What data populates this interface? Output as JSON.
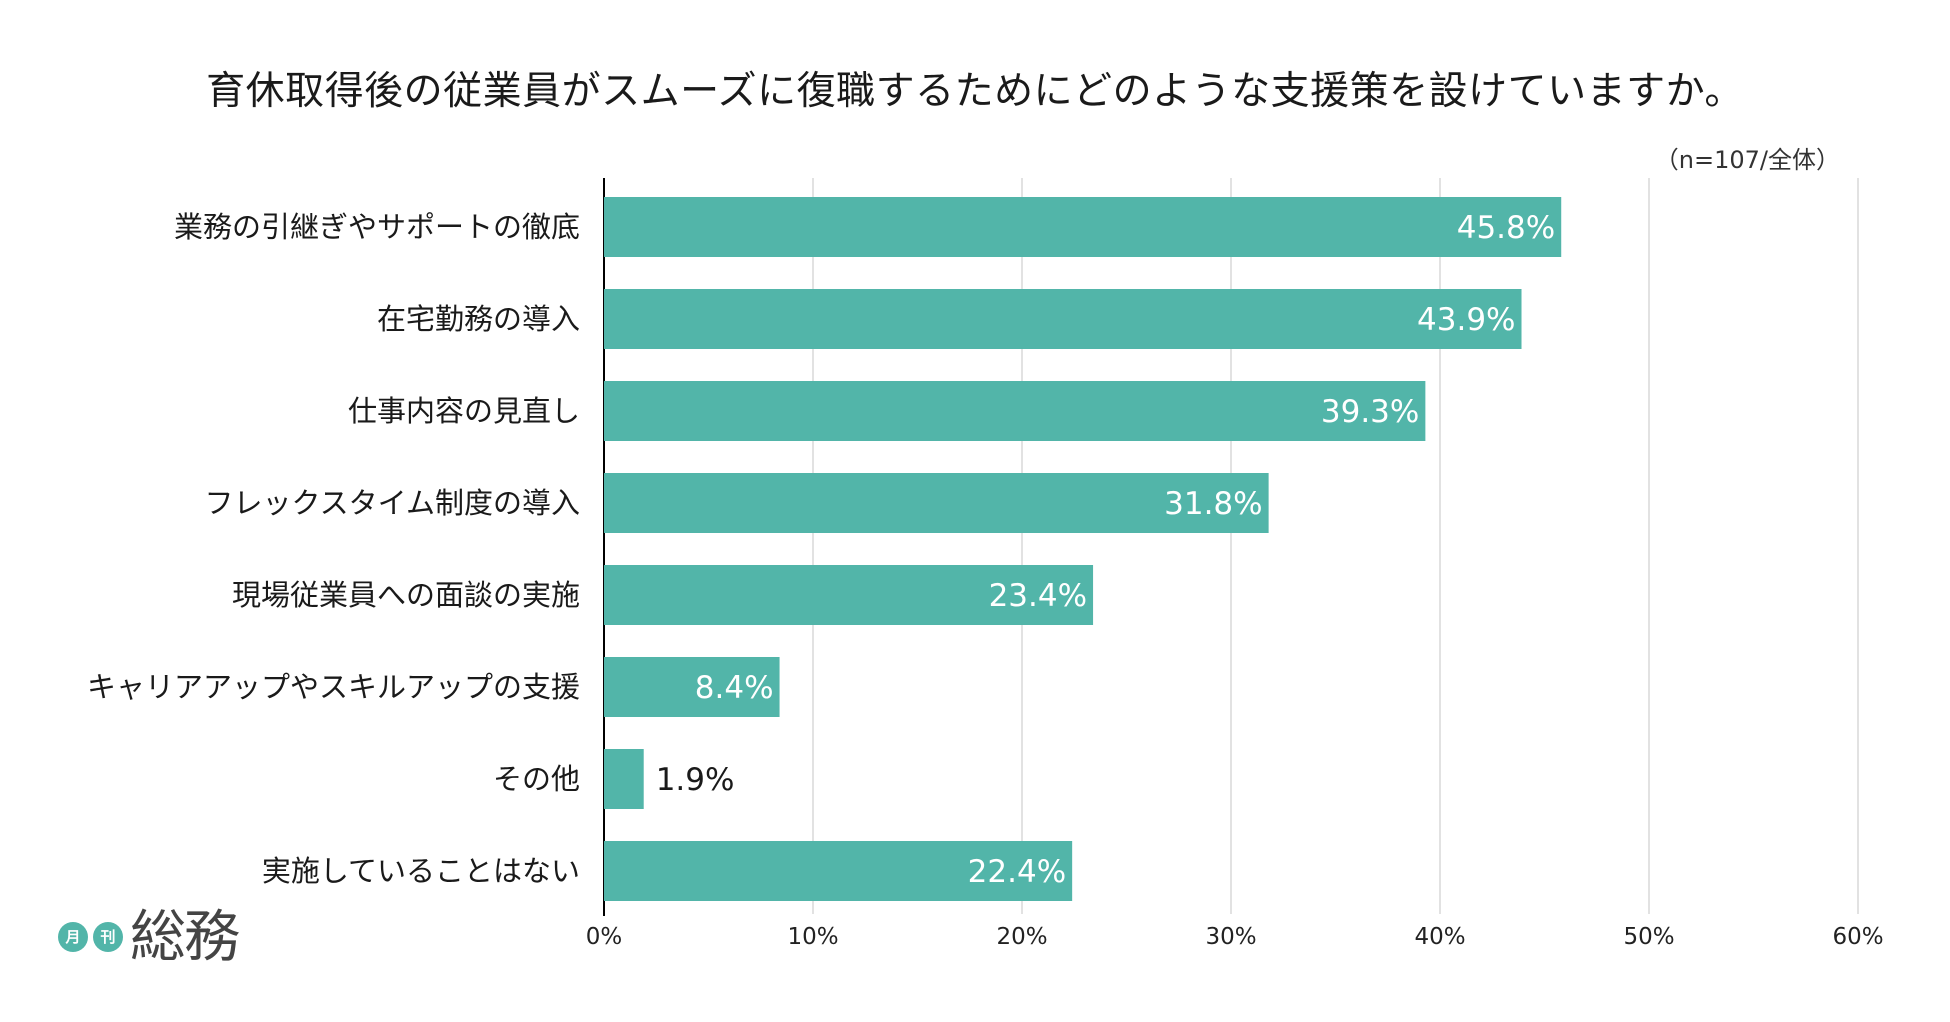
{
  "chart_data": {
    "type": "bar",
    "orientation": "horizontal",
    "title": "育休取得後の従業員がスムーズに復職するためにどのような支援策を設けていますか。",
    "note": "（n=107/全体）",
    "categories": [
      "業務の引継ぎやサポートの徹底",
      "在宅勤務の導入",
      "仕事内容の見直し",
      "フレックスタイム制度の導入",
      "現場従業員への面談の実施",
      "キャリアアップやスキルアップの支援",
      "その他",
      "実施していることはない"
    ],
    "values": [
      45.8,
      43.9,
      39.3,
      31.8,
      23.4,
      8.4,
      1.9,
      22.4
    ],
    "value_labels": [
      "45.8%",
      "43.9%",
      "39.3%",
      "31.8%",
      "23.4%",
      "8.4%",
      "1.9%",
      "22.4%"
    ],
    "xlim": [
      0,
      60
    ],
    "ticks": [
      0,
      10,
      20,
      30,
      40,
      50,
      60
    ],
    "tick_labels": [
      "0%",
      "10%",
      "20%",
      "30%",
      "40%",
      "50%",
      "60%"
    ],
    "xlabel": "",
    "ylabel": "",
    "grid": true,
    "bar_color": "#52b5a9",
    "grid_color": "#d9d9d9",
    "axis_color": "#000000"
  },
  "logo": {
    "badge_1": "月",
    "badge_2": "刊",
    "word": "総務",
    "badge_color": "#52b5a9"
  }
}
